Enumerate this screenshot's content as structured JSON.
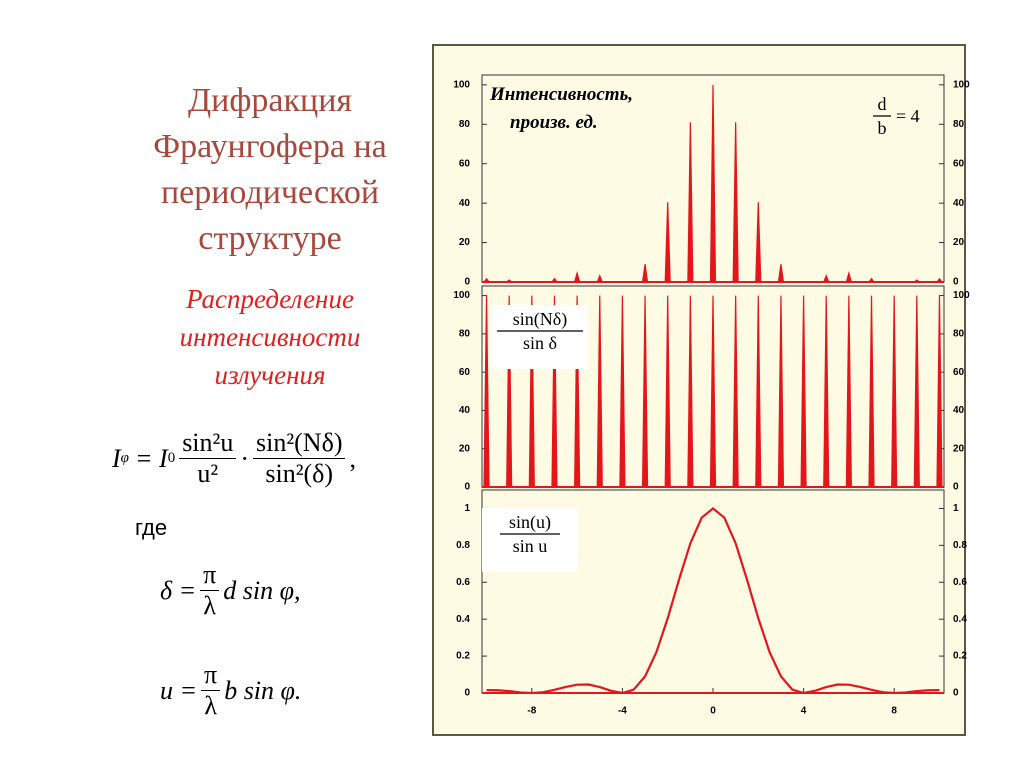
{
  "slide": {
    "title": [
      "Дифракция",
      "Фраунгофера на",
      "периодической",
      "структуре"
    ],
    "subtitle": [
      "Распределение",
      "интенсивности",
      "излучения"
    ],
    "formula_1": {
      "lhs": "I",
      "lhs_sub": "φ",
      "eq": "= I",
      "eq_sub": "0",
      "frac1_num": "sin²u",
      "frac1_den": "u²",
      "dot": "·",
      "frac2_num": "sin²(Nδ)",
      "frac2_den": "sin²(δ)",
      "end": ","
    },
    "where": "где",
    "formula_2": {
      "lhs": "δ =",
      "num": "π",
      "den": "λ",
      "rest": "d sin φ,"
    },
    "formula_3": {
      "lhs": "u =",
      "num": "π",
      "den": "λ",
      "rest": "b sin φ."
    }
  },
  "chart_data": [
    {
      "type": "spike",
      "label": [
        "Интенсивность,",
        "произв. ед."
      ],
      "ratio": {
        "num": "d",
        "den": "b",
        "rest": "= 4"
      },
      "color": "#e4161b",
      "x": [
        -10,
        -9,
        -8,
        -7,
        -6,
        -5,
        -4,
        -3,
        -2,
        -1,
        0,
        1,
        2,
        3,
        4,
        5,
        6,
        7,
        8,
        9,
        10
      ],
      "values": [
        1.6,
        1,
        0,
        1.7,
        4.5,
        3.2,
        0,
        9,
        40.5,
        81,
        100,
        81,
        40.5,
        9,
        0,
        3.2,
        4.5,
        1.7,
        0,
        1,
        1.6
      ],
      "xlim": [
        -10.2,
        10.2
      ],
      "ylim": [
        0,
        105
      ],
      "yticks": [
        0,
        20,
        40,
        60,
        80,
        100
      ]
    },
    {
      "type": "spike",
      "label": {
        "num": "sin(Nδ)",
        "den": "sin δ"
      },
      "color": "#e4161b",
      "x": [
        -10,
        -9,
        -8,
        -7,
        -6,
        -5,
        -4,
        -3,
        -2,
        -1,
        0,
        1,
        2,
        3,
        4,
        5,
        6,
        7,
        8,
        9,
        10
      ],
      "values": [
        100,
        100,
        100,
        100,
        100,
        100,
        100,
        100,
        100,
        100,
        100,
        100,
        100,
        100,
        100,
        100,
        100,
        100,
        100,
        100,
        100
      ],
      "xlim": [
        -10.2,
        10.2
      ],
      "ylim": [
        0,
        105
      ],
      "yticks": [
        0,
        20,
        40,
        60,
        80,
        100
      ]
    },
    {
      "type": "line",
      "label": {
        "num": "sin(u)",
        "den": "sin u"
      },
      "color": "#e4161b",
      "x": [
        -10,
        -9.5,
        -9,
        -8.5,
        -8,
        -7.5,
        -7,
        -6.5,
        -6,
        -5.5,
        -5,
        -4.5,
        -4,
        -3.5,
        -3,
        -2.5,
        -2,
        -1.5,
        -1,
        -0.5,
        0,
        0.5,
        1,
        1.5,
        2,
        2.5,
        3,
        3.5,
        4,
        4.5,
        5,
        5.5,
        6,
        6.5,
        7,
        7.5,
        8,
        8.5,
        9,
        9.5,
        10
      ],
      "values": [
        0.016,
        0.015,
        0.01,
        0.003,
        0,
        0.004,
        0.017,
        0.033,
        0.045,
        0.046,
        0.032,
        0.012,
        0,
        0.019,
        0.09,
        0.221,
        0.405,
        0.615,
        0.811,
        0.95,
        1,
        0.95,
        0.811,
        0.615,
        0.405,
        0.221,
        0.09,
        0.019,
        0,
        0.012,
        0.032,
        0.046,
        0.045,
        0.033,
        0.017,
        0.004,
        0,
        0.003,
        0.01,
        0.015,
        0.016
      ],
      "xlim": [
        -10.2,
        10.2
      ],
      "xticks": [
        -8,
        -4,
        0,
        4,
        8
      ],
      "ylim": [
        0,
        1.1
      ],
      "yticks": [
        0,
        0.2,
        0.4,
        0.6,
        0.8,
        1
      ]
    }
  ]
}
